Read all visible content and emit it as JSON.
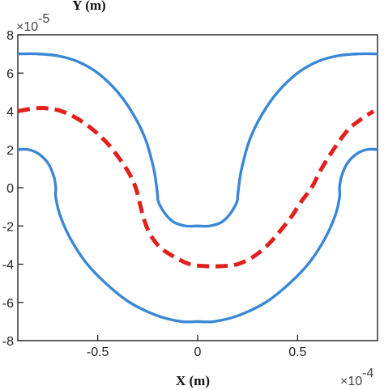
{
  "chart_data": {
    "type": "line",
    "xlabel": "X (m)",
    "ylabel": "Y (m)",
    "x_exponent_label": "×10",
    "x_exponent_power": "-4",
    "y_exponent_label": "×10",
    "y_exponent_power": "-5",
    "xlim": [
      -0.9,
      0.9
    ],
    "ylim": [
      -8,
      8
    ],
    "x_ticks": [
      -0.5,
      0,
      0.5
    ],
    "x_tick_labels": [
      "-0.5",
      "0",
      "0.5"
    ],
    "y_ticks": [
      -8,
      -6,
      -4,
      -2,
      0,
      2,
      4,
      6,
      8
    ],
    "y_tick_labels": [
      "-8",
      "-6",
      "-4",
      "-2",
      "0",
      "2",
      "4",
      "6",
      "8"
    ],
    "grid": false,
    "colors": {
      "outer_boundary": "#3a87d6",
      "centerline": "#e0201c",
      "axes": "#111111"
    },
    "series": [
      {
        "style": "solid",
        "color": "#3a87d6",
        "x": [
          -0.9,
          -0.8,
          -0.7,
          -0.6,
          -0.5,
          -0.4,
          -0.32,
          -0.26,
          -0.22,
          -0.205,
          -0.2,
          -0.2,
          -0.19,
          -0.16,
          -0.12,
          -0.06,
          0,
          0.06,
          0.12,
          0.16,
          0.19,
          0.2,
          0.2,
          0.205,
          0.22,
          0.26,
          0.32,
          0.4,
          0.5,
          0.6,
          0.7,
          0.8,
          0.9
        ],
        "y": [
          7.0,
          7.0,
          6.9,
          6.6,
          6.0,
          5.0,
          3.8,
          2.5,
          1.0,
          0.0,
          -0.5,
          -0.6,
          -0.9,
          -1.4,
          -1.8,
          -2.0,
          -2.0,
          -2.0,
          -1.8,
          -1.4,
          -0.9,
          -0.6,
          -0.5,
          0.0,
          1.0,
          2.5,
          3.8,
          5.0,
          6.0,
          6.6,
          6.9,
          7.0,
          7.0
        ]
      },
      {
        "style": "solid",
        "color": "#3a87d6",
        "x": [
          -0.9,
          -0.85,
          -0.8,
          -0.75,
          -0.72,
          -0.71,
          -0.71,
          -0.69,
          -0.64,
          -0.56,
          -0.46,
          -0.34,
          -0.2,
          -0.08,
          0,
          0.08,
          0.2,
          0.34,
          0.46,
          0.56,
          0.64,
          0.69,
          0.71,
          0.71,
          0.72,
          0.75,
          0.8,
          0.85,
          0.9
        ],
        "y": [
          2.0,
          2.0,
          1.8,
          1.3,
          0.6,
          0.0,
          -0.5,
          -1.4,
          -2.6,
          -3.9,
          -5.0,
          -6.0,
          -6.7,
          -7.0,
          -7.0,
          -7.0,
          -6.7,
          -6.0,
          -5.0,
          -3.9,
          -2.6,
          -1.4,
          -0.5,
          0.0,
          0.6,
          1.3,
          1.8,
          2.0,
          2.0
        ]
      },
      {
        "style": "dashed",
        "color": "#e0201c",
        "x": [
          -0.9,
          -0.82,
          -0.75,
          -0.68,
          -0.6,
          -0.52,
          -0.45,
          -0.39,
          -0.34,
          -0.31,
          -0.29,
          -0.27,
          -0.24,
          -0.19,
          -0.12,
          -0.04,
          0.04,
          0.12,
          0.2,
          0.28,
          0.35,
          0.41,
          0.47,
          0.52,
          0.57,
          0.62,
          0.68,
          0.75,
          0.82,
          0.88
        ],
        "y": [
          4.0,
          4.15,
          4.15,
          4.0,
          3.6,
          3.0,
          2.3,
          1.5,
          0.7,
          0.0,
          -0.8,
          -1.6,
          -2.4,
          -3.1,
          -3.6,
          -4.0,
          -4.1,
          -4.1,
          -4.0,
          -3.6,
          -3.0,
          -2.3,
          -1.5,
          -0.7,
          0.0,
          1.0,
          2.0,
          3.0,
          3.6,
          4.0
        ]
      }
    ]
  }
}
